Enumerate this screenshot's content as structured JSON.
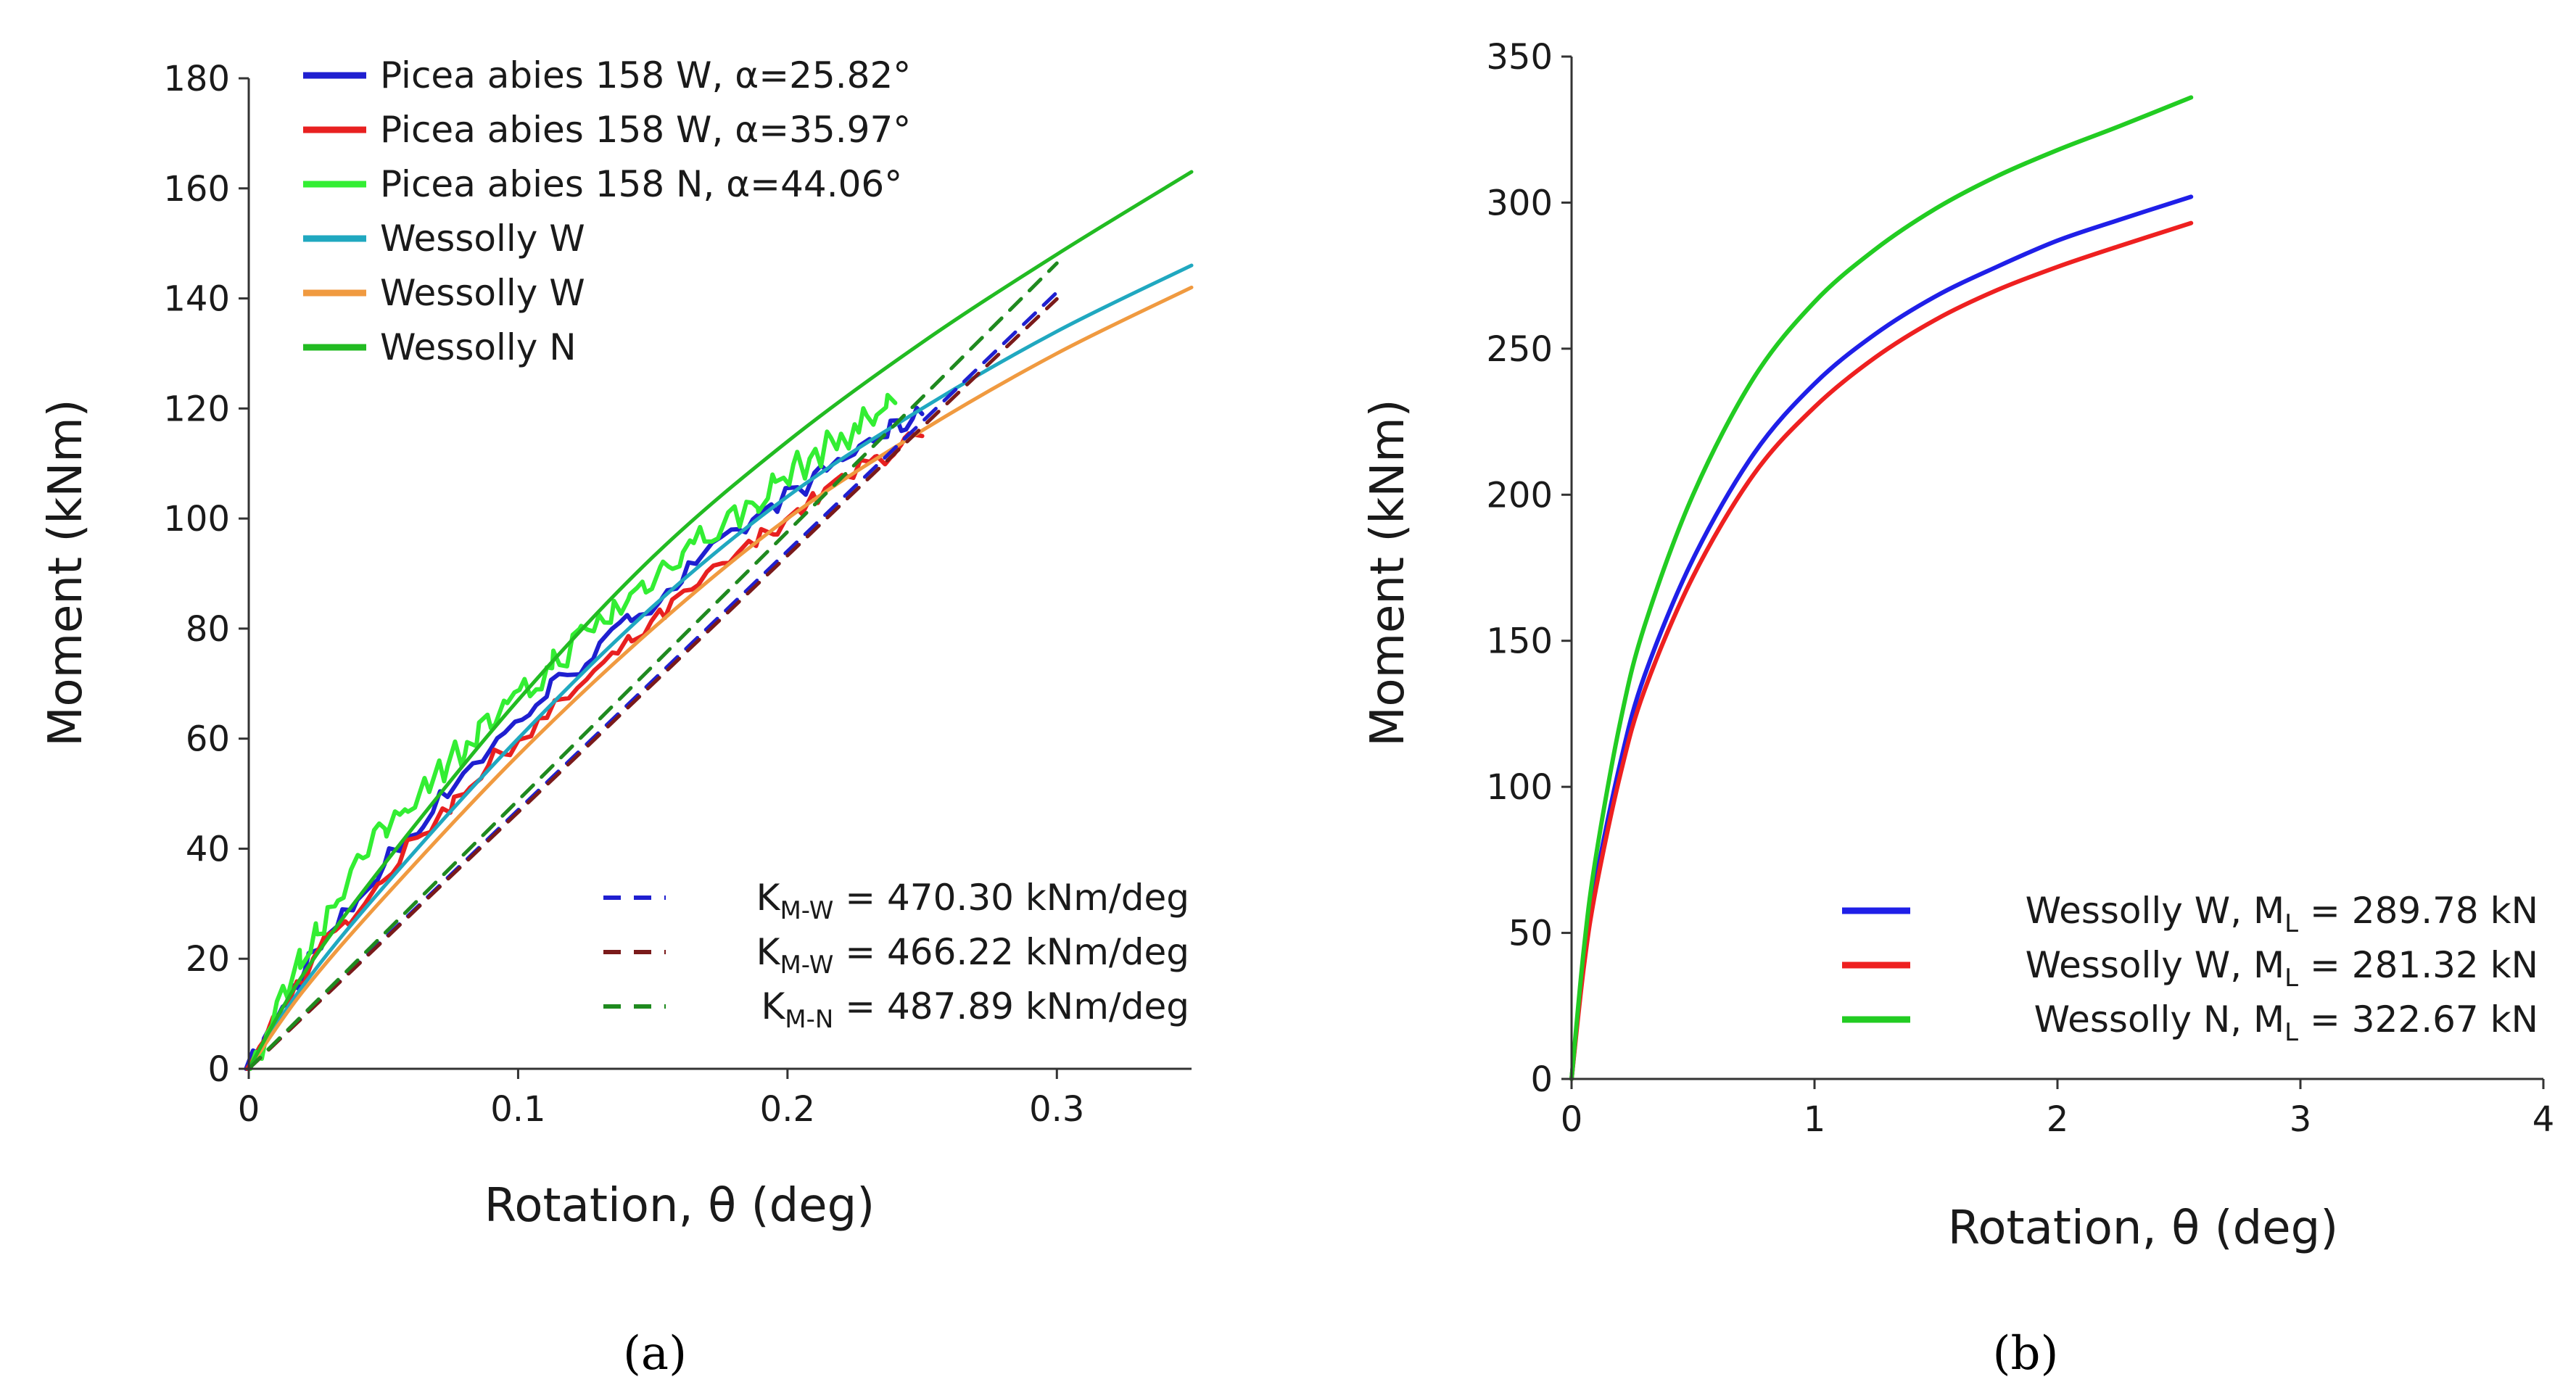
{
  "chart_data": [
    {
      "type": "line",
      "panel_label": "(a)",
      "xlabel": "Rotation, θ (deg)",
      "ylabel": "Moment (kNm)",
      "xlim": [
        0,
        0.35
      ],
      "ylim": [
        0,
        180
      ],
      "xticks": [
        "0",
        "0.1",
        "0.2",
        "0.3"
      ],
      "xtick_values": [
        0,
        0.1,
        0.2,
        0.3
      ],
      "yticks": [
        "0",
        "20",
        "40",
        "60",
        "80",
        "100",
        "120",
        "140",
        "160",
        "180"
      ],
      "ytick_values": [
        0,
        20,
        40,
        60,
        80,
        100,
        120,
        140,
        160,
        180
      ],
      "series": [
        {
          "name": "Picea abies 158 W, α=25.82°",
          "color": "#1f1fd0",
          "width": 6,
          "noise": 1.8,
          "x": [
            0,
            0.02,
            0.05,
            0.08,
            0.11,
            0.14,
            0.17,
            0.2,
            0.23,
            0.25
          ],
          "y": [
            0,
            18,
            37,
            54,
            68,
            81,
            93,
            104,
            114,
            119
          ]
        },
        {
          "name": "Picea abies 158 W, α=35.97°",
          "color": "#e82020",
          "width": 6,
          "noise": 1.8,
          "x": [
            0,
            0.02,
            0.05,
            0.08,
            0.11,
            0.14,
            0.17,
            0.2,
            0.23,
            0.25
          ],
          "y": [
            0,
            17,
            35,
            51,
            64,
            77,
            89,
            100,
            110,
            115
          ]
        },
        {
          "name": "Picea abies 158 N, α=44.06°",
          "color": "#33ee33",
          "width": 6,
          "noise": 3.0,
          "x": [
            0,
            0.02,
            0.04,
            0.06,
            0.08,
            0.1,
            0.12,
            0.14,
            0.16,
            0.18,
            0.2,
            0.22,
            0.24
          ],
          "y": [
            0,
            21,
            37,
            49,
            59,
            67,
            77,
            85,
            94,
            100,
            108,
            115,
            121
          ]
        },
        {
          "name": "Wessolly W",
          "color": "#20a8c0",
          "width": 5,
          "noise": 0,
          "x": [
            0,
            0.02,
            0.05,
            0.1,
            0.15,
            0.2,
            0.25,
            0.3,
            0.35
          ],
          "y": [
            0,
            15,
            33,
            60,
            84,
            104,
            120,
            134,
            146
          ]
        },
        {
          "name": "Wessolly W",
          "color": "#f09a40",
          "width": 5,
          "noise": 0,
          "x": [
            0,
            0.02,
            0.05,
            0.1,
            0.15,
            0.2,
            0.25,
            0.3,
            0.35
          ],
          "y": [
            0,
            14,
            31,
            57,
            80,
            100,
            116,
            130,
            142
          ]
        },
        {
          "name": "Wessolly N",
          "color": "#22bb22",
          "width": 5,
          "noise": 0,
          "x": [
            0,
            0.02,
            0.05,
            0.1,
            0.15,
            0.2,
            0.25,
            0.3,
            0.35
          ],
          "y": [
            0,
            17,
            37,
            67,
            93,
            114,
            132,
            148,
            163
          ]
        },
        {
          "name": "K_M-W = 470.30 kNm/deg",
          "label_main": "K",
          "label_sub": "M-W",
          "label_rest": " = 470.30 kNm/deg",
          "color": "#1f1fd0",
          "width": 5,
          "dashed": true,
          "noise": 0,
          "x": [
            0,
            0.3
          ],
          "y": [
            0,
            141.1
          ]
        },
        {
          "name": "K_M-W = 466.22 kNm/deg",
          "label_main": "K",
          "label_sub": "M-W",
          "label_rest": " = 466.22 kNm/deg",
          "color": "#7a1a1a",
          "width": 5,
          "dashed": true,
          "noise": 0,
          "x": [
            0,
            0.3
          ],
          "y": [
            0,
            139.9
          ]
        },
        {
          "name": "K_M-N = 487.89 kNm/deg",
          "label_main": "K",
          "label_sub": "M-N",
          "label_rest": " = 487.89 kNm/deg",
          "color": "#1f8a1f",
          "width": 5,
          "dashed": true,
          "noise": 0,
          "x": [
            0,
            0.3
          ],
          "y": [
            0,
            146.4
          ]
        }
      ]
    },
    {
      "type": "line",
      "panel_label": "(b)",
      "xlabel": "Rotation, θ (deg)",
      "ylabel": "Moment (kNm)",
      "xlim": [
        0,
        4
      ],
      "ylim": [
        0,
        350
      ],
      "xticks": [
        "0",
        "1",
        "2",
        "3",
        "4"
      ],
      "xtick_values": [
        0,
        1,
        2,
        3,
        4
      ],
      "yticks": [
        "0",
        "50",
        "100",
        "150",
        "200",
        "250",
        "300",
        "350"
      ],
      "ytick_values": [
        0,
        50,
        100,
        150,
        200,
        250,
        300,
        350
      ],
      "series": [
        {
          "name": "Wessolly W, M_L = 289.78 kN",
          "label_main": "Wessolly W, M",
          "label_sub": "L",
          "label_rest": " = 289.78 kN",
          "color": "#1f1fe8",
          "width": 6,
          "x": [
            0,
            0.05,
            0.1,
            0.2,
            0.3,
            0.5,
            0.75,
            1.0,
            1.25,
            1.5,
            1.75,
            2.0,
            2.25,
            2.55
          ],
          "y": [
            0,
            40,
            68,
            108,
            138,
            178,
            214,
            238,
            255,
            268,
            278,
            287,
            294,
            302
          ]
        },
        {
          "name": "Wessolly W, M_L = 281.32 kN",
          "label_main": "Wessolly W, M",
          "label_sub": "L",
          "label_rest": " = 281.32 kN",
          "color": "#ee2020",
          "width": 6,
          "x": [
            0,
            0.05,
            0.1,
            0.2,
            0.3,
            0.5,
            0.75,
            1.0,
            1.25,
            1.5,
            1.75,
            2.0,
            2.25,
            2.55
          ],
          "y": [
            0,
            38,
            65,
            104,
            133,
            172,
            207,
            230,
            247,
            260,
            270,
            278,
            285,
            293
          ]
        },
        {
          "name": "Wessolly N, M_L = 322.67 kN",
          "label_main": "Wessolly N, M",
          "label_sub": "L",
          "label_rest": " = 322.67 kN",
          "color": "#22cc22",
          "width": 6,
          "x": [
            0,
            0.05,
            0.1,
            0.2,
            0.3,
            0.5,
            0.75,
            1.0,
            1.25,
            1.5,
            1.75,
            2.0,
            2.25,
            2.55
          ],
          "y": [
            0,
            44,
            76,
            122,
            155,
            200,
            240,
            266,
            284,
            298,
            309,
            318,
            326,
            336
          ]
        }
      ]
    }
  ]
}
